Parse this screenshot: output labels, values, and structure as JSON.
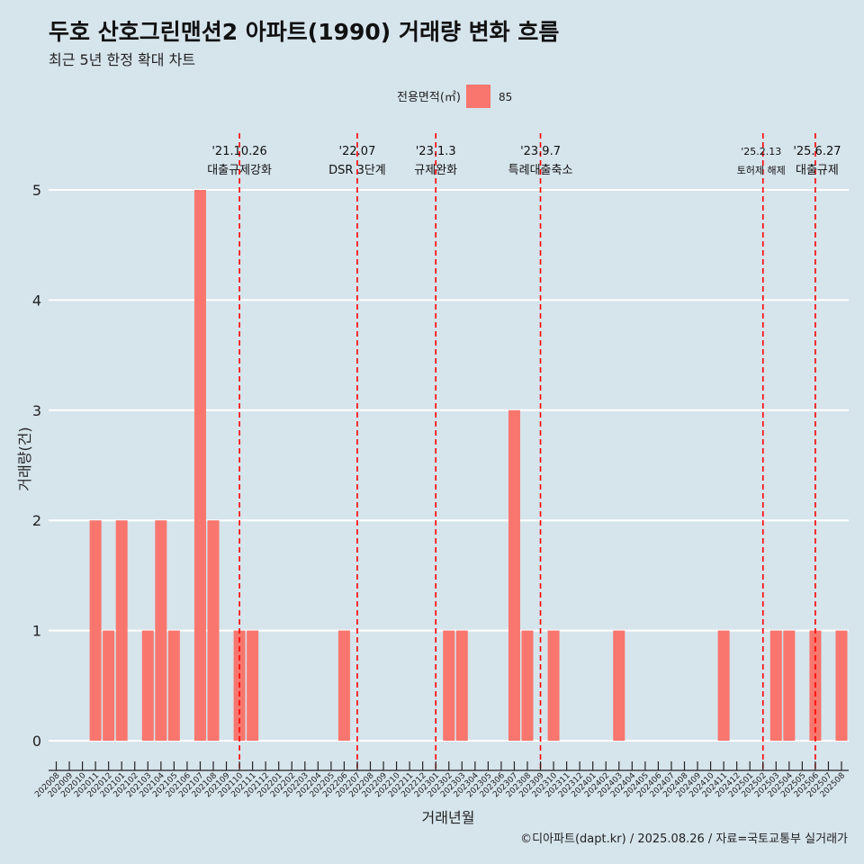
{
  "title": "두호 산호그린맨션2 아파트(1990) 거래량 변화 흐름",
  "subtitle": "최근 5년 한정 확대 차트",
  "caption": "©디아파트(dapt.kr) / 2025.08.26 / 자료=국토교통부 실거래가",
  "colors": {
    "background": "#d6e4ec",
    "bar": "#f8766d",
    "event_line": "#ff0000",
    "grid": "#ffffff"
  },
  "chart_data": {
    "type": "bar",
    "xlabel": "거래년월",
    "ylabel": "거래량(건)",
    "ylim": [
      0,
      5
    ],
    "yticks": [
      0,
      1,
      2,
      3,
      4,
      5
    ],
    "legend": {
      "title": "전용면적(㎡)",
      "position": "top",
      "entries": [
        "85"
      ]
    },
    "categories": [
      "202008",
      "202009",
      "202010",
      "202011",
      "202012",
      "202101",
      "202102",
      "202103",
      "202104",
      "202105",
      "202106",
      "202107",
      "202108",
      "202109",
      "202110",
      "202111",
      "202112",
      "202201",
      "202202",
      "202203",
      "202204",
      "202205",
      "202206",
      "202207",
      "202208",
      "202209",
      "202210",
      "202211",
      "202212",
      "202301",
      "202302",
      "202303",
      "202304",
      "202305",
      "202306",
      "202307",
      "202308",
      "202309",
      "202310",
      "202311",
      "202312",
      "202401",
      "202402",
      "202403",
      "202404",
      "202405",
      "202406",
      "202407",
      "202408",
      "202409",
      "202410",
      "202411",
      "202412",
      "202501",
      "202502",
      "202503",
      "202504",
      "202505",
      "202506",
      "202507",
      "202508"
    ],
    "series": [
      {
        "name": "85",
        "values": [
          0,
          0,
          0,
          2,
          1,
          2,
          0,
          1,
          2,
          1,
          0,
          5,
          2,
          0,
          1,
          1,
          0,
          0,
          0,
          0,
          0,
          0,
          1,
          0,
          0,
          0,
          0,
          0,
          0,
          0,
          1,
          1,
          0,
          0,
          0,
          3,
          1,
          0,
          1,
          0,
          0,
          0,
          0,
          1,
          0,
          0,
          0,
          0,
          0,
          0,
          0,
          1,
          0,
          0,
          0,
          1,
          1,
          0,
          1,
          0,
          1
        ]
      }
    ],
    "events": [
      {
        "date": "'21.10.26",
        "label": "대출규제강화",
        "x": "202110"
      },
      {
        "date": "'22.07",
        "label": "DSR 3단계",
        "x": "202207"
      },
      {
        "date": "'23.1.3",
        "label": "규제완화",
        "x": "202301"
      },
      {
        "date": "'23.9.7",
        "label": "특례대출축소",
        "x": "202309"
      },
      {
        "date": "'25.2.13",
        "label": "토허제 해제",
        "x": "202502"
      },
      {
        "date": "'25.6.27",
        "label": "대출규제",
        "x": "202506"
      }
    ]
  }
}
